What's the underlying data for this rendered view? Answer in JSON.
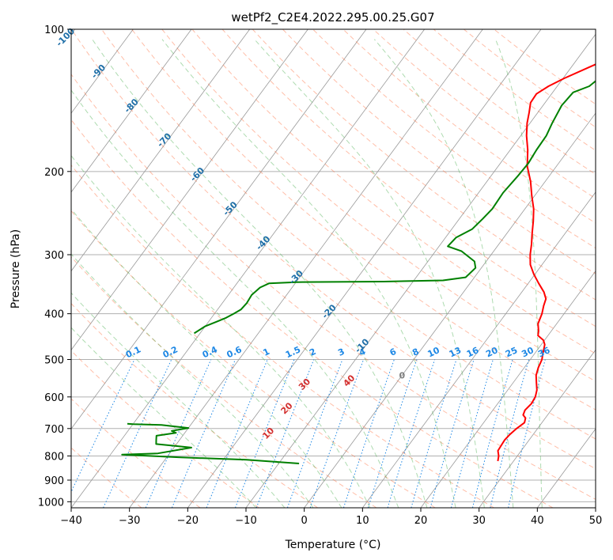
{
  "chart_data": {
    "type": "line",
    "subtype": "skew-T log-P diagram",
    "title": "wetPf2_C2E4.2022.295.00.25.G07",
    "xlabel": "Temperature (°C)",
    "ylabel": "Pressure (hPa)",
    "xlim": [
      -40,
      50
    ],
    "ylim": [
      1030,
      100
    ],
    "y_scale": "log",
    "x_ticks": [
      -40,
      -30,
      -20,
      -10,
      0,
      10,
      20,
      30,
      40,
      50
    ],
    "y_ticks": [
      100,
      200,
      300,
      400,
      500,
      600,
      700,
      800,
      900,
      1000
    ],
    "grid": true,
    "colors": {
      "temperature": "#ff0000",
      "dewpoint": "#008000",
      "dry_adiabat": "#ff6f3f",
      "moist_adiabat": "#4caf50",
      "mixing_ratio": "#1e88e5",
      "isotherm": "#808080",
      "freezing_isotherm_label": "#808080",
      "dry_adiabat_label": "#d32f2f",
      "moist_adiabat_label": "#1f6fa8"
    },
    "series": [
      {
        "key": "temperature",
        "points": [
          [
            27.3,
            820
          ],
          [
            26.8,
            800
          ],
          [
            26.0,
            780
          ],
          [
            25.9,
            760
          ],
          [
            25.8,
            740
          ],
          [
            26.0,
            720
          ],
          [
            26.4,
            700
          ],
          [
            27.0,
            680
          ],
          [
            26.6,
            665
          ],
          [
            25.8,
            655
          ],
          [
            25.5,
            640
          ],
          [
            25.8,
            620
          ],
          [
            25.6,
            600
          ],
          [
            25.0,
            580
          ],
          [
            24.0,
            560
          ],
          [
            23.0,
            540
          ],
          [
            22.4,
            520
          ],
          [
            22.0,
            500
          ],
          [
            21.5,
            488
          ],
          [
            21.0,
            475
          ],
          [
            20.6,
            465
          ],
          [
            19.8,
            455
          ],
          [
            18.3,
            445
          ],
          [
            17.8,
            435
          ],
          [
            16.8,
            420
          ],
          [
            16.2,
            400
          ],
          [
            15.5,
            385
          ],
          [
            15.0,
            372
          ],
          [
            13.8,
            360
          ],
          [
            11.8,
            345
          ],
          [
            9.8,
            330
          ],
          [
            8.0,
            315
          ],
          [
            6.7,
            300
          ],
          [
            5.6,
            285
          ],
          [
            4.3,
            270
          ],
          [
            3.0,
            255
          ],
          [
            1.5,
            240
          ],
          [
            -0.5,
            225
          ],
          [
            -2.5,
            210
          ],
          [
            -5.0,
            195
          ],
          [
            -7.0,
            180
          ],
          [
            -9.0,
            168
          ],
          [
            -10.5,
            158
          ],
          [
            -11.5,
            150
          ],
          [
            -12.5,
            143
          ],
          [
            -12.6,
            137
          ],
          [
            -11.5,
            132
          ],
          [
            -9.8,
            127
          ],
          [
            -6.8,
            120
          ],
          [
            -4.0,
            114
          ],
          [
            -1.5,
            110
          ],
          [
            1.0,
            106
          ],
          [
            3.0,
            102
          ],
          [
            3.9,
            100
          ]
        ]
      },
      {
        "key": "dewpoint",
        "points": [
          [
            -6.5,
            830
          ],
          [
            -16.0,
            815
          ],
          [
            -28.0,
            805
          ],
          [
            -38.0,
            795
          ],
          [
            -32.0,
            790
          ],
          [
            -27.0,
            768
          ],
          [
            -30.0,
            762
          ],
          [
            -33.5,
            755
          ],
          [
            -34.0,
            740
          ],
          [
            -34.5,
            725
          ],
          [
            -31.5,
            715
          ],
          [
            -32.5,
            708
          ],
          [
            -30.0,
            698
          ],
          [
            -35.0,
            688
          ],
          [
            -40.0,
            685
          ],
          [
            -41.0,
            684
          ]
        ]
      },
      {
        "key": "dewpoint",
        "points": [
          [
            -41.0,
            440
          ],
          [
            -40.0,
            425
          ],
          [
            -38.5,
            415
          ],
          [
            -37.5,
            408
          ],
          [
            -36.7,
            400
          ],
          [
            -36.0,
            392
          ],
          [
            -35.8,
            380
          ],
          [
            -36.0,
            365
          ],
          [
            -35.5,
            352
          ],
          [
            -34.5,
            345
          ],
          [
            -30.0,
            343
          ],
          [
            -15.0,
            342
          ],
          [
            -5.0,
            340
          ],
          [
            -1.5,
            335
          ],
          [
            -1.0,
            320
          ],
          [
            -2.0,
            310
          ],
          [
            -5.5,
            295
          ],
          [
            -8.5,
            288
          ],
          [
            -8.2,
            276
          ],
          [
            -6.5,
            265
          ],
          [
            -6.0,
            252
          ],
          [
            -5.6,
            240
          ],
          [
            -5.8,
            222
          ],
          [
            -5.4,
            205
          ],
          [
            -5.2,
            192
          ],
          [
            -5.5,
            180
          ],
          [
            -5.6,
            168
          ],
          [
            -6.2,
            158
          ],
          [
            -6.8,
            145
          ],
          [
            -6.5,
            136
          ],
          [
            -4.5,
            132
          ],
          [
            -3.7,
            126
          ],
          [
            -3.5,
            118
          ],
          [
            -3.0,
            112
          ],
          [
            -1.5,
            108
          ],
          [
            0.5,
            103
          ],
          [
            1.5,
            100
          ]
        ]
      }
    ],
    "dry_adiabat_labels": [
      "10",
      "20",
      "30",
      "40"
    ],
    "dry_adiabat_label_temps": [
      10,
      20,
      30,
      40
    ],
    "moist_adiabat_labels": [
      "-100",
      "-90",
      "-80",
      "-70",
      "-60",
      "-50",
      "-40",
      "-30",
      "-20",
      "-10"
    ],
    "moist_adiabat_label_temps": [
      -100,
      -90,
      -80,
      -70,
      -60,
      -50,
      -40,
      -30,
      -20,
      -10
    ],
    "mixing_ratio_labels": [
      "0.1",
      "0.2",
      "0.4",
      "0.6",
      "1",
      "1.5",
      "2",
      "3",
      "4",
      "6",
      "8",
      "10",
      "13",
      "16",
      "20",
      "25",
      "30",
      "36"
    ],
    "mixing_ratio_values": [
      0.1,
      0.2,
      0.4,
      0.6,
      1,
      1.5,
      2,
      3,
      4,
      6,
      8,
      10,
      13,
      16,
      20,
      25,
      30,
      36
    ],
    "freezing_label": "0"
  }
}
